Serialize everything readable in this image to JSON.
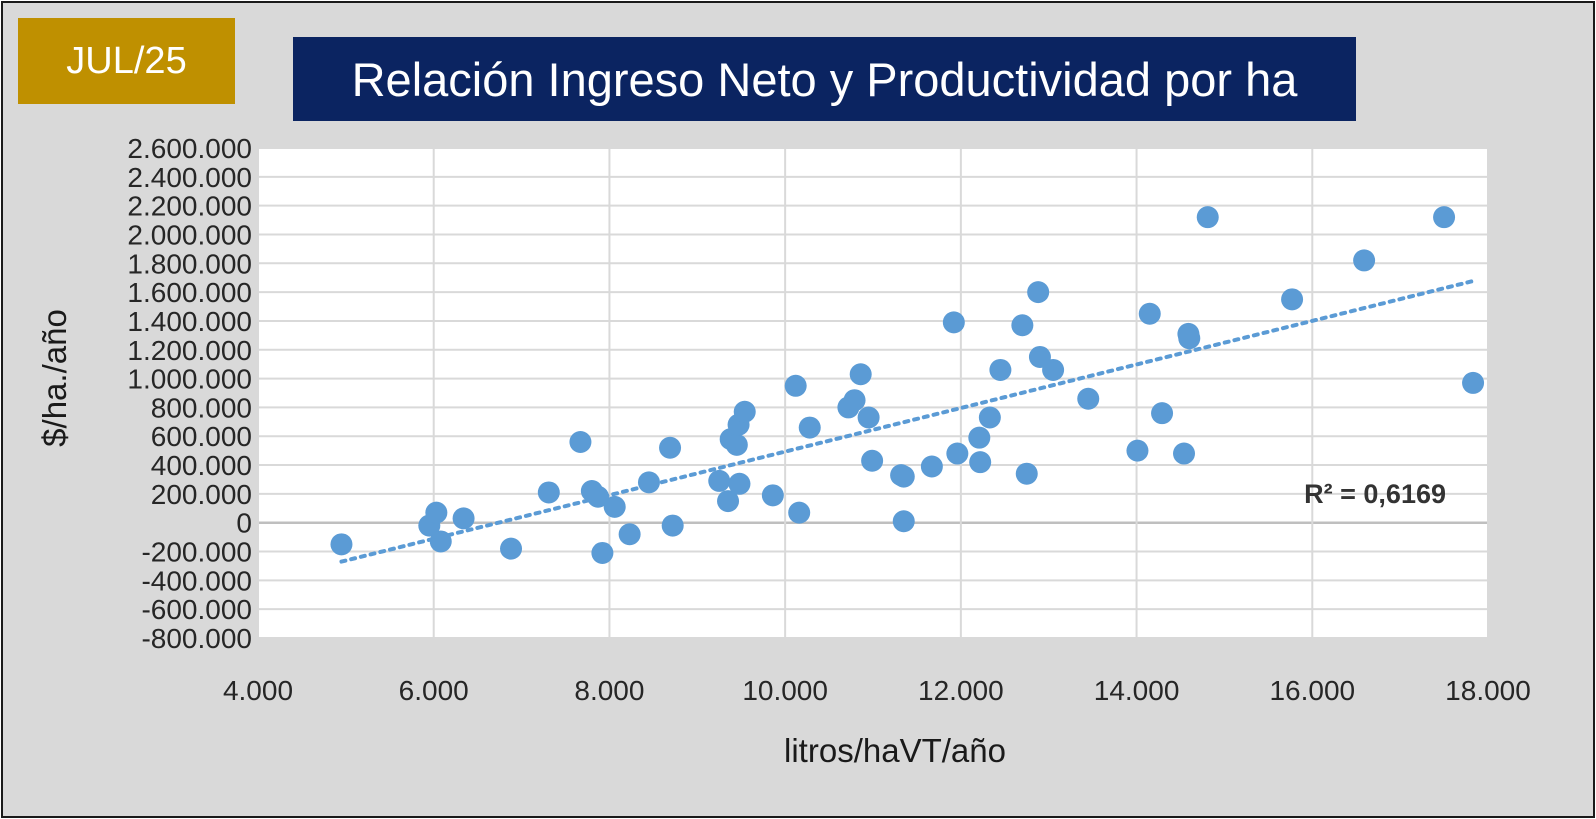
{
  "badge": {
    "text": "JUL/25",
    "color": "#bf9000"
  },
  "title": {
    "text": "Relación Ingreso Neto y Productividad por ha",
    "color": "#0b2461"
  },
  "chart_data": {
    "type": "scatter",
    "title": "Relación Ingreso Neto y Productividad por ha",
    "xlabel": "litros/haVT/año",
    "ylabel": "$/ha./año",
    "xlim": [
      4000,
      18000
    ],
    "ylim": [
      -800000,
      2600000
    ],
    "x_tick_labels": [
      "4.000",
      "6.000",
      "8.000",
      "10.000",
      "12.000",
      "14.000",
      "16.000",
      "18.000"
    ],
    "y_tick_labels": [
      "2.600.000",
      "2.400.000",
      "2.200.000",
      "2.000.000",
      "1.800.000",
      "1.600.000",
      "1.400.000",
      "1.200.000",
      "1.000.000",
      "800.000",
      "600.000",
      "400.000",
      "200.000",
      "0",
      "-200.000",
      "-400.000",
      "-600.000",
      "-800.000"
    ],
    "grid": true,
    "marker_color": "#5b9bd5",
    "trendline": {
      "type": "linear",
      "style": "dotted",
      "color": "#5b9bd5",
      "x_range": [
        4950,
        17850
      ],
      "y_values": [
        -270000,
        1680000
      ],
      "r_squared_label": "R² = 0,6169"
    },
    "points": [
      {
        "x": 4950,
        "y": -150000
      },
      {
        "x": 5950,
        "y": -20000
      },
      {
        "x": 6030,
        "y": 70000
      },
      {
        "x": 6080,
        "y": -130000
      },
      {
        "x": 6340,
        "y": 30000
      },
      {
        "x": 6880,
        "y": -180000
      },
      {
        "x": 7310,
        "y": 210000
      },
      {
        "x": 7670,
        "y": 560000
      },
      {
        "x": 7800,
        "y": 220000
      },
      {
        "x": 7870,
        "y": 180000
      },
      {
        "x": 7920,
        "y": -210000
      },
      {
        "x": 8060,
        "y": 110000
      },
      {
        "x": 8230,
        "y": -80000
      },
      {
        "x": 8450,
        "y": 280000
      },
      {
        "x": 8690,
        "y": 520000
      },
      {
        "x": 8720,
        "y": -20000
      },
      {
        "x": 9250,
        "y": 290000
      },
      {
        "x": 9350,
        "y": 150000
      },
      {
        "x": 9380,
        "y": 580000
      },
      {
        "x": 9450,
        "y": 540000
      },
      {
        "x": 9470,
        "y": 680000
      },
      {
        "x": 9480,
        "y": 270000
      },
      {
        "x": 9540,
        "y": 770000
      },
      {
        "x": 9860,
        "y": 190000
      },
      {
        "x": 10120,
        "y": 950000
      },
      {
        "x": 10160,
        "y": 70000
      },
      {
        "x": 10280,
        "y": 660000
      },
      {
        "x": 10720,
        "y": 800000
      },
      {
        "x": 10790,
        "y": 850000
      },
      {
        "x": 10860,
        "y": 1030000
      },
      {
        "x": 10950,
        "y": 730000
      },
      {
        "x": 10990,
        "y": 430000
      },
      {
        "x": 11320,
        "y": 330000
      },
      {
        "x": 11350,
        "y": 320000
      },
      {
        "x": 11350,
        "y": 10000
      },
      {
        "x": 11670,
        "y": 390000
      },
      {
        "x": 11920,
        "y": 1390000
      },
      {
        "x": 11960,
        "y": 480000
      },
      {
        "x": 12210,
        "y": 590000
      },
      {
        "x": 12220,
        "y": 420000
      },
      {
        "x": 12330,
        "y": 730000
      },
      {
        "x": 12450,
        "y": 1060000
      },
      {
        "x": 12700,
        "y": 1370000
      },
      {
        "x": 12750,
        "y": 340000
      },
      {
        "x": 12880,
        "y": 1600000
      },
      {
        "x": 12900,
        "y": 1150000
      },
      {
        "x": 13050,
        "y": 1060000
      },
      {
        "x": 13450,
        "y": 860000
      },
      {
        "x": 14010,
        "y": 500000
      },
      {
        "x": 14150,
        "y": 1450000
      },
      {
        "x": 14290,
        "y": 760000
      },
      {
        "x": 14540,
        "y": 480000
      },
      {
        "x": 14590,
        "y": 1310000
      },
      {
        "x": 14600,
        "y": 1280000
      },
      {
        "x": 14810,
        "y": 2120000
      },
      {
        "x": 15770,
        "y": 1550000
      },
      {
        "x": 16590,
        "y": 1820000
      },
      {
        "x": 17500,
        "y": 2120000
      },
      {
        "x": 17830,
        "y": 970000
      }
    ]
  }
}
